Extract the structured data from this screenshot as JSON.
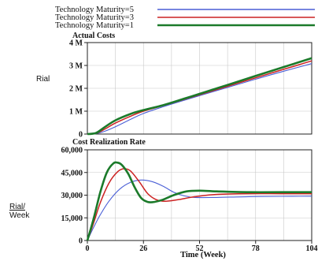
{
  "legend": [
    {
      "name": "Technology Maturity=5",
      "color": "#4a5fd6"
    },
    {
      "name": "Technology Maturity=3",
      "color": "#cc2222"
    },
    {
      "name": "Technology Maturity=1",
      "color": "#1b7a2a"
    }
  ],
  "chart_data": [
    {
      "type": "line",
      "title": "Actual Costs",
      "ylabel": "Rial",
      "xlabel": "",
      "xlim": [
        0,
        104
      ],
      "ylim": [
        0,
        4000000
      ],
      "yticks": [
        0,
        1000000,
        2000000,
        3000000,
        4000000
      ],
      "ytick_labels": [
        "0",
        "1 M",
        "2 M",
        "3 M",
        "4 M"
      ],
      "xticks": [],
      "grid": true,
      "series": [
        {
          "name": "Technology Maturity=5",
          "x": [
            0,
            4,
            8,
            13,
            20,
            26,
            35,
            45,
            52,
            65,
            78,
            91,
            104
          ],
          "y": [
            0,
            20000,
            120000,
            320000,
            640000,
            900000,
            1190000,
            1480000,
            1680000,
            2040000,
            2400000,
            2750000,
            3080000
          ]
        },
        {
          "name": "Technology Maturity=3",
          "x": [
            0,
            4,
            8,
            13,
            20,
            26,
            35,
            45,
            52,
            65,
            78,
            91,
            104
          ],
          "y": [
            0,
            30000,
            210000,
            480000,
            780000,
            1000000,
            1240000,
            1520000,
            1720000,
            2090000,
            2460000,
            2830000,
            3200000
          ]
        },
        {
          "name": "Technology Maturity=1",
          "x": [
            0,
            4,
            8,
            13,
            20,
            26,
            35,
            45,
            52,
            65,
            78,
            91,
            104
          ],
          "y": [
            0,
            50000,
            300000,
            600000,
            880000,
            1050000,
            1260000,
            1550000,
            1760000,
            2150000,
            2540000,
            2930000,
            3320000
          ]
        }
      ]
    },
    {
      "type": "line",
      "title": "Cost Realization Rate",
      "ylabel": "Rial/ Week",
      "xlabel": "Time (Week)",
      "xlim": [
        0,
        104
      ],
      "ylim": [
        0,
        60000
      ],
      "yticks": [
        0,
        15000,
        30000,
        45000,
        60000
      ],
      "ytick_labels": [
        "0",
        "15,000",
        "30,000",
        "45,000",
        "60,000"
      ],
      "xticks": [
        0,
        26,
        52,
        78,
        104
      ],
      "xtick_labels": [
        "0",
        "26",
        "52",
        "78",
        "104"
      ],
      "grid": true,
      "series": [
        {
          "name": "Technology Maturity=5",
          "x": [
            0,
            3,
            6,
            10,
            15,
            20,
            25,
            30,
            35,
            40,
            45,
            50,
            60,
            75,
            90,
            104
          ],
          "y": [
            0,
            9000,
            17000,
            26000,
            34000,
            38500,
            40000,
            39000,
            36000,
            32000,
            29500,
            28500,
            28500,
            29000,
            29200,
            29300
          ]
        },
        {
          "name": "Technology Maturity=3",
          "x": [
            0,
            3,
            6,
            10,
            14,
            17,
            20,
            24,
            28,
            32,
            36,
            42,
            50,
            60,
            75,
            90,
            104
          ],
          "y": [
            0,
            12000,
            25000,
            38000,
            45500,
            47500,
            46000,
            39000,
            31000,
            27000,
            26000,
            27000,
            29000,
            30500,
            31000,
            31000,
            31000
          ]
        },
        {
          "name": "Technology Maturity=1",
          "x": [
            0,
            3,
            6,
            9,
            12,
            14,
            16,
            19,
            22,
            25,
            28,
            31,
            35,
            40,
            46,
            52,
            60,
            75,
            90,
            104
          ],
          "y": [
            0,
            15000,
            32000,
            45000,
            51000,
            51500,
            50000,
            44000,
            35000,
            28000,
            25500,
            25500,
            27000,
            30000,
            32500,
            33000,
            32500,
            32000,
            32000,
            32000
          ]
        }
      ]
    }
  ]
}
